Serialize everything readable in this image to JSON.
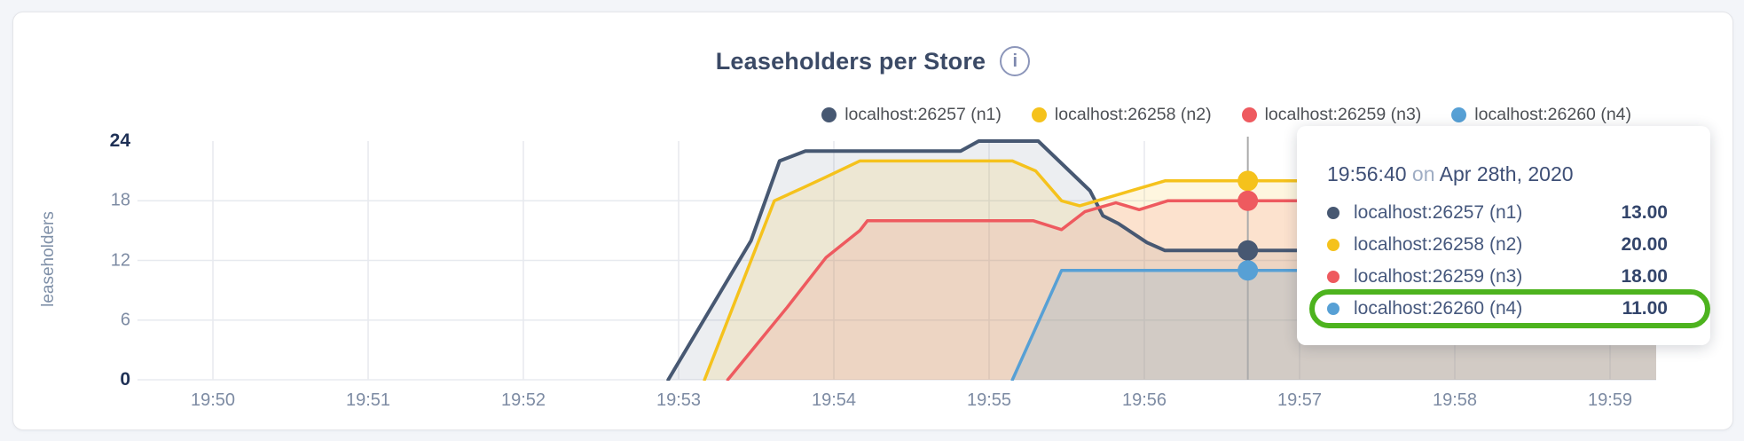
{
  "page": {
    "background": "#f3f5f9"
  },
  "header": {
    "title": "Leaseholders per Store",
    "info_icon_glyph": "i"
  },
  "legend": {
    "items": [
      {
        "label": "localhost:26257 (n1)",
        "color": "#475872"
      },
      {
        "label": "localhost:26258 (n2)",
        "color": "#f5c21c"
      },
      {
        "label": "localhost:26259 (n3)",
        "color": "#ee5a5f"
      },
      {
        "label": "localhost:26260 (n4)",
        "color": "#57a0d5"
      }
    ]
  },
  "chart_data": {
    "type": "area",
    "title": "Leaseholders per Store",
    "ylabel": "leaseholders",
    "xlabel": "",
    "ylim": [
      0,
      24
    ],
    "grid": true,
    "legend_position": "top-right",
    "y_ticks": [
      {
        "value": 24,
        "label": "24",
        "bold": true
      },
      {
        "value": 18,
        "label": "18",
        "bold": false
      },
      {
        "value": 12,
        "label": "12",
        "bold": false
      },
      {
        "value": 6,
        "label": "6",
        "bold": false
      },
      {
        "value": 0,
        "label": "0",
        "bold": true
      }
    ],
    "x_ticks": [
      "19:50",
      "19:51",
      "19:52",
      "19:53",
      "19:54",
      "19:55",
      "19:56",
      "19:57",
      "19:58",
      "19:59"
    ],
    "x_tick_seconds": [
      0,
      60,
      120,
      180,
      240,
      300,
      360,
      420,
      480,
      540
    ],
    "series": [
      {
        "name": "localhost:26257 (n1)",
        "color": "#475872",
        "fill_opacity": 0.1,
        "points": [
          [
            176,
            0
          ],
          [
            208,
            14
          ],
          [
            219,
            22
          ],
          [
            229,
            23
          ],
          [
            289,
            23
          ],
          [
            296,
            24
          ],
          [
            319,
            24
          ],
          [
            339,
            19
          ],
          [
            344,
            16.5
          ],
          [
            350,
            15.7
          ],
          [
            361,
            13.8
          ],
          [
            368,
            13
          ],
          [
            558,
            13
          ]
        ]
      },
      {
        "name": "localhost:26258 (n2)",
        "color": "#f5c21c",
        "fill_opacity": 0.14,
        "points": [
          [
            190,
            0
          ],
          [
            217,
            18
          ],
          [
            228,
            19.3
          ],
          [
            237,
            20.4
          ],
          [
            250,
            22
          ],
          [
            309,
            22
          ],
          [
            318,
            21
          ],
          [
            328,
            18
          ],
          [
            335,
            17.5
          ],
          [
            368,
            20
          ],
          [
            558,
            20
          ]
        ]
      },
      {
        "name": "localhost:26259 (n3)",
        "color": "#ee5a5f",
        "fill_opacity": 0.13,
        "points": [
          [
            199,
            0
          ],
          [
            222,
            7.3
          ],
          [
            237,
            12.3
          ],
          [
            250,
            15
          ],
          [
            253,
            16
          ],
          [
            317,
            16
          ],
          [
            328,
            15.1
          ],
          [
            337,
            16.9
          ],
          [
            349,
            17.8
          ],
          [
            358,
            17.1
          ],
          [
            369,
            18
          ],
          [
            558,
            18
          ]
        ]
      },
      {
        "name": "localhost:26260 (n4)",
        "color": "#57a0d5",
        "fill_opacity": 0.18,
        "points": [
          [
            309,
            0
          ],
          [
            328,
            11
          ],
          [
            558,
            11
          ]
        ]
      }
    ],
    "hover": {
      "time": "19:56:40",
      "t_seconds": 400,
      "values": [
        13,
        20,
        18,
        11
      ]
    }
  },
  "tooltip": {
    "time": "19:56:40",
    "connector": "on",
    "date": "Apr 28th, 2020",
    "rows": [
      {
        "label": "localhost:26257 (n1)",
        "value": "13.00",
        "color": "#475872"
      },
      {
        "label": "localhost:26258 (n2)",
        "value": "20.00",
        "color": "#f5c21c"
      },
      {
        "label": "localhost:26259 (n3)",
        "value": "18.00",
        "color": "#ee5a5f"
      },
      {
        "label": "localhost:26260 (n4)",
        "value": "11.00",
        "color": "#57a0d5"
      }
    ],
    "highlight_row_index": 3,
    "highlight_color": "#4db31e"
  }
}
